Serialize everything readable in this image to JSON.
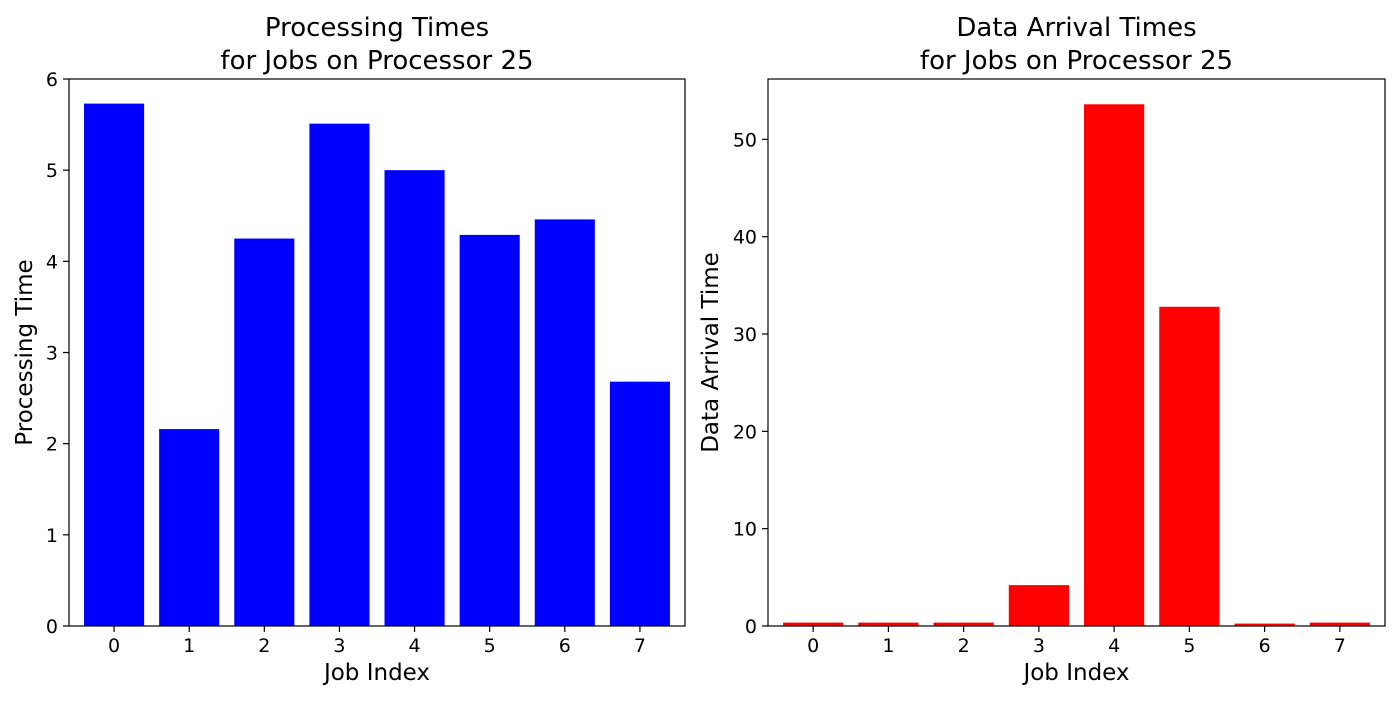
{
  "chart_data": [
    {
      "type": "bar",
      "title_lines": [
        "Processing Times",
        "for Jobs on Processor 25"
      ],
      "xlabel": "Job Index",
      "ylabel": "Processing Time",
      "categories": [
        "0",
        "1",
        "2",
        "3",
        "4",
        "5",
        "6",
        "7"
      ],
      "values": [
        5.73,
        2.16,
        4.25,
        5.51,
        5.0,
        4.29,
        4.46,
        2.68
      ],
      "ylim": [
        0,
        6.0
      ],
      "yticks": [
        0,
        1,
        2,
        3,
        4,
        5,
        6
      ],
      "color": "#0000ff",
      "grid": false
    },
    {
      "type": "bar",
      "title_lines": [
        "Data Arrival Times",
        "for Jobs on Processor 25"
      ],
      "xlabel": "Job Index",
      "ylabel": "Data Arrival Time",
      "categories": [
        "0",
        "1",
        "2",
        "3",
        "4",
        "5",
        "6",
        "7"
      ],
      "values": [
        0.35,
        0.35,
        0.35,
        4.2,
        53.6,
        32.8,
        0.25,
        0.35
      ],
      "ylim": [
        0,
        56.2
      ],
      "yticks": [
        0,
        10,
        20,
        30,
        40,
        50
      ],
      "color": "#ff0000",
      "grid": false
    }
  ]
}
